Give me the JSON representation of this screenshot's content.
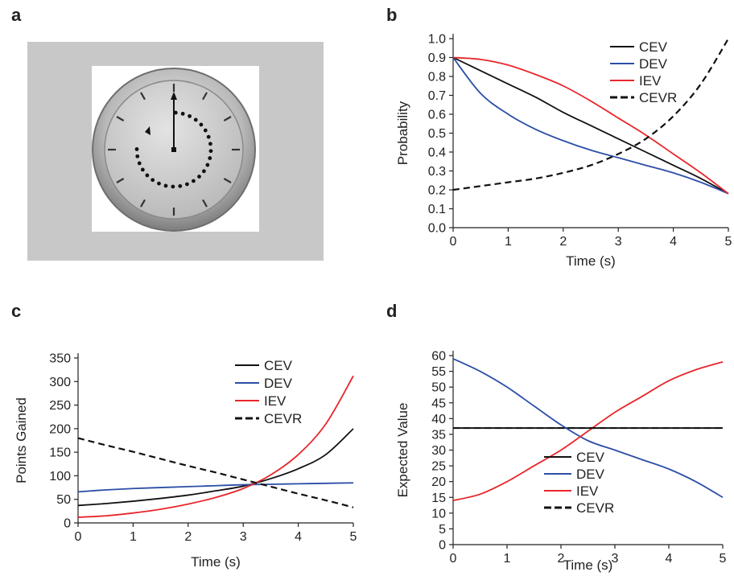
{
  "panels": {
    "a": {
      "letter": "a"
    },
    "b": {
      "letter": "b"
    },
    "c": {
      "letter": "c"
    },
    "d": {
      "letter": "d"
    }
  },
  "colors": {
    "CEV": "#111111",
    "DEV": "#2c4ea6",
    "IEV": "#e8262b",
    "CEVR": "#111111",
    "panel_bg": "#c8c8c8"
  },
  "clock": {
    "icon": "stopwatch-clock-face",
    "face_color": "#cfcfcf",
    "dots": 25
  },
  "chart_data": [
    {
      "panel": "b",
      "type": "line",
      "title": "",
      "xlabel": "Time (s)",
      "ylabel": "Probability",
      "xlim": [
        0,
        5
      ],
      "ylim": [
        0,
        1.0
      ],
      "xticks": [
        "0",
        "1",
        "2",
        "3",
        "4",
        "5"
      ],
      "yticks": [
        "0.0",
        "0.1",
        "0.2",
        "0.3",
        "0.4",
        "0.5",
        "0.6",
        "0.7",
        "0.8",
        "0.9",
        "1.0"
      ],
      "legend_position": "top-right",
      "x": [
        0,
        0.5,
        1,
        1.5,
        2,
        2.5,
        3,
        3.5,
        4,
        4.5,
        5
      ],
      "series": [
        {
          "name": "CEV",
          "values": [
            0.9,
            0.83,
            0.76,
            0.69,
            0.61,
            0.54,
            0.47,
            0.4,
            0.33,
            0.26,
            0.18
          ]
        },
        {
          "name": "DEV",
          "values": [
            0.9,
            0.71,
            0.6,
            0.52,
            0.46,
            0.41,
            0.37,
            0.33,
            0.29,
            0.24,
            0.18
          ]
        },
        {
          "name": "IEV",
          "values": [
            0.9,
            0.89,
            0.86,
            0.81,
            0.75,
            0.67,
            0.58,
            0.49,
            0.39,
            0.29,
            0.18
          ]
        },
        {
          "name": "CEVR",
          "dashed": true,
          "values": [
            0.2,
            0.22,
            0.24,
            0.26,
            0.29,
            0.33,
            0.39,
            0.47,
            0.59,
            0.76,
            1.0
          ]
        }
      ]
    },
    {
      "panel": "c",
      "type": "line",
      "title": "",
      "xlabel": "Time (s)",
      "ylabel": "Points Gained",
      "xlim": [
        0,
        5
      ],
      "ylim": [
        0,
        350
      ],
      "xticks": [
        "0",
        "1",
        "2",
        "3",
        "4",
        "5"
      ],
      "yticks": [
        "0",
        "50",
        "100",
        "150",
        "200",
        "250",
        "300",
        "350"
      ],
      "legend_position": "top-right",
      "x": [
        0,
        0.5,
        1,
        1.5,
        2,
        2.5,
        3,
        3.5,
        4,
        4.5,
        5
      ],
      "series": [
        {
          "name": "CEV",
          "values": [
            37,
            41,
            46,
            52,
            59,
            68,
            78,
            94,
            115,
            145,
            200
          ]
        },
        {
          "name": "DEV",
          "values": [
            66,
            70,
            73,
            75,
            77,
            79,
            81,
            82,
            83,
            84,
            85
          ]
        },
        {
          "name": "IEV",
          "values": [
            12,
            15,
            21,
            29,
            40,
            54,
            73,
            102,
            145,
            210,
            312
          ]
        },
        {
          "name": "CEVR",
          "dashed": true,
          "values": [
            180,
            165,
            151,
            136,
            121,
            107,
            92,
            77,
            62,
            48,
            33
          ]
        }
      ]
    },
    {
      "panel": "d",
      "type": "line",
      "title": "",
      "xlabel": "Time (s)",
      "ylabel": "Expected Value",
      "xlim": [
        0,
        5
      ],
      "ylim": [
        0,
        60
      ],
      "xticks": [
        "0",
        "1",
        "2",
        "3",
        "4",
        "5"
      ],
      "yticks": [
        "0",
        "5",
        "10",
        "15",
        "20",
        "25",
        "30",
        "35",
        "40",
        "45",
        "50",
        "55",
        "60"
      ],
      "legend_position": "bottom-center",
      "x": [
        0,
        0.5,
        1,
        1.5,
        2,
        2.5,
        3,
        3.5,
        4,
        4.5,
        5
      ],
      "series": [
        {
          "name": "CEV",
          "values": [
            37,
            37,
            37,
            37,
            37,
            37,
            37,
            37,
            37,
            37,
            37
          ]
        },
        {
          "name": "DEV",
          "values": [
            59,
            55,
            50,
            44,
            38,
            33,
            30,
            27,
            24,
            20,
            15
          ]
        },
        {
          "name": "IEV",
          "values": [
            14,
            16,
            20,
            25,
            30,
            36,
            42,
            47,
            52,
            55.5,
            58
          ]
        },
        {
          "name": "CEVR",
          "dashed": true,
          "values": [
            37,
            37,
            37,
            37,
            37,
            37,
            37,
            37,
            37,
            37,
            37
          ]
        }
      ]
    }
  ]
}
